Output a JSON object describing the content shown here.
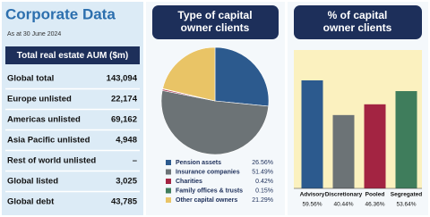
{
  "header": {
    "title": "Corporate Data",
    "subtitle": "As at 30 June 2024"
  },
  "table": {
    "header": "Total real estate AUM ($m)",
    "rows": [
      [
        "Global total",
        "143,094"
      ],
      [
        "Europe unlisted",
        "22,174"
      ],
      [
        "Americas unlisted",
        "69,162"
      ],
      [
        "Asia Pacific unlisted",
        "4,948"
      ],
      [
        "Rest of world unlisted",
        "–"
      ],
      [
        "Global listed",
        "3,025"
      ],
      [
        "Global debt",
        "43,785"
      ]
    ]
  },
  "chart_data": [
    {
      "type": "pie",
      "title": "Type of capital owner clients",
      "categories": [
        "Pension assets",
        "Insurance companies",
        "Charities",
        "Family offices & trusts",
        "Other capital owners"
      ],
      "values": [
        26.56,
        51.49,
        0.42,
        0.15,
        21.29
      ],
      "value_labels": [
        "26.56%",
        "51.49%",
        "0.42%",
        "0.15%",
        "21.29%"
      ],
      "colors": [
        "#2c5a8e",
        "#6c7376",
        "#a32442",
        "#3f7d5c",
        "#e9c466"
      ]
    },
    {
      "type": "bar",
      "title": "% of capital owner clients",
      "categories": [
        "Advisory",
        "Discretionary",
        "Pooled",
        "Segregated"
      ],
      "values": [
        59.56,
        40.44,
        46.36,
        53.64
      ],
      "value_labels": [
        "59.56%",
        "40.44%",
        "46.36%",
        "53.64%"
      ],
      "colors": [
        "#2c5a8e",
        "#6c7376",
        "#a32442",
        "#3f7d5c"
      ]
    }
  ]
}
